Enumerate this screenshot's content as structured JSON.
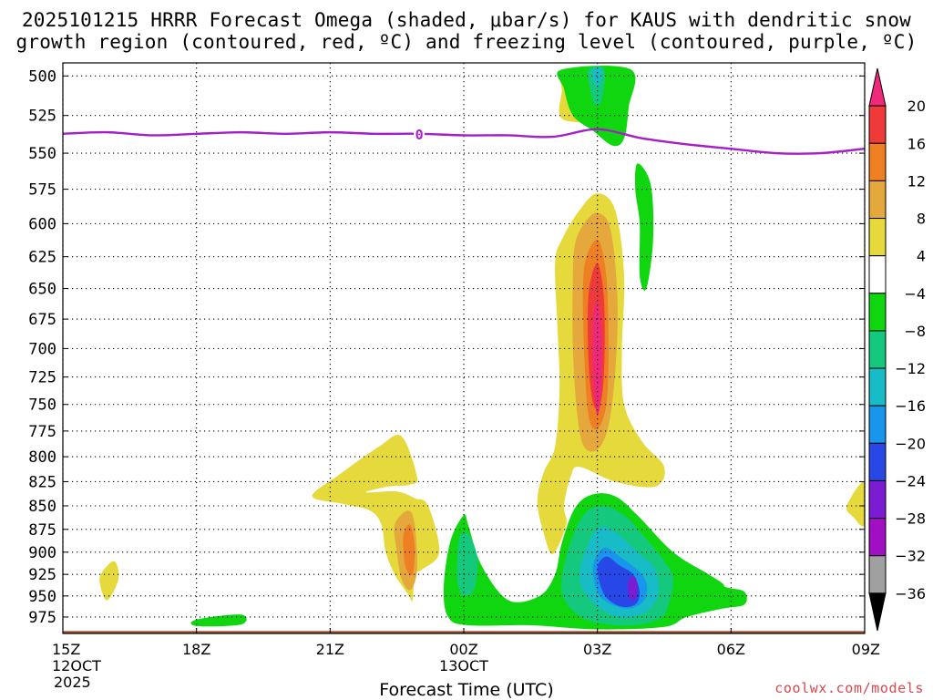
{
  "title_line1": "2025101215 HRRR Forecast Omega (shaded, μbar/s) for KAUS with dendritic snow",
  "title_line2": "growth region (contoured, red, ºC) and freezing level (contoured, purple, ºC)",
  "credit": "coolwx.com/models",
  "chart_data": {
    "type": "heatmap",
    "title": "2025101215 HRRR Forecast Omega (shaded, μbar/s) for KAUS with dendritic snow growth region (contoured, red, ºC) and freezing level (contoured, purple, ºC)",
    "xlabel": "Forecast Time (UTC)",
    "ylabel": "",
    "y_axis": {
      "values": [
        500,
        525,
        550,
        575,
        600,
        625,
        650,
        675,
        700,
        725,
        750,
        775,
        800,
        825,
        850,
        875,
        900,
        925,
        950,
        975
      ],
      "inverted_log_pressure": true,
      "range": [
        492,
        995
      ]
    },
    "x_axis": {
      "range_hours": [
        0,
        18
      ],
      "ticks": [
        {
          "hour": 0,
          "label": "15Z",
          "sub1": "12OCT",
          "sub2": "2025"
        },
        {
          "hour": 3,
          "label": "18Z"
        },
        {
          "hour": 6,
          "label": "21Z"
        },
        {
          "hour": 9,
          "label": "00Z",
          "sub1": "13OCT"
        },
        {
          "hour": 12,
          "label": "03Z"
        },
        {
          "hour": 15,
          "label": "06Z"
        },
        {
          "hour": 18,
          "label": "09Z"
        }
      ]
    },
    "grid": true,
    "colorbar": {
      "labels": [
        "20",
        "16",
        "12",
        "8",
        "4",
        "−4",
        "−8",
        "−12",
        "−16",
        "−20",
        "−24",
        "−28",
        "−32",
        "−36"
      ],
      "bins": [
        {
          "lo": 20,
          "hi": null,
          "color": "#f0287c"
        },
        {
          "lo": 16,
          "hi": 20,
          "color": "#ef3a3a"
        },
        {
          "lo": 12,
          "hi": 16,
          "color": "#ee7f23"
        },
        {
          "lo": 8,
          "hi": 12,
          "color": "#e4a83c"
        },
        {
          "lo": 4,
          "hi": 8,
          "color": "#e5d93b"
        },
        {
          "lo": -4,
          "hi": 4,
          "color": "#ffffff"
        },
        {
          "lo": -8,
          "hi": -4,
          "color": "#0fd60f"
        },
        {
          "lo": -12,
          "hi": -8,
          "color": "#14c97e"
        },
        {
          "lo": -16,
          "hi": -12,
          "color": "#18bcc6"
        },
        {
          "lo": -20,
          "hi": -16,
          "color": "#1796ec"
        },
        {
          "lo": -24,
          "hi": -20,
          "color": "#2748e7"
        },
        {
          "lo": -28,
          "hi": -24,
          "color": "#7b1cd2"
        },
        {
          "lo": -32,
          "hi": -28,
          "color": "#a10ec4"
        },
        {
          "lo": -36,
          "hi": -32,
          "color": "#a0a0a0"
        },
        {
          "lo": null,
          "hi": -36,
          "color": "#000000"
        }
      ]
    },
    "omega_features": [
      {
        "omega": 4,
        "points": [
          [
            11.3,
            496
          ],
          [
            12.7,
            496
          ],
          [
            12.7,
            520
          ],
          [
            12.5,
            543
          ],
          [
            12.0,
            531
          ],
          [
            11.2,
            527
          ],
          [
            11.2,
            510
          ]
        ]
      },
      {
        "omega": -8,
        "points": [
          [
            11.2,
            496
          ],
          [
            12.75,
            496
          ],
          [
            12.7,
            520
          ],
          [
            12.6,
            540
          ],
          [
            12.35,
            545
          ],
          [
            11.9,
            535
          ],
          [
            11.45,
            525
          ],
          [
            11.25,
            508
          ]
        ]
      },
      {
        "omega": -12,
        "points": [
          [
            11.8,
            496
          ],
          [
            12.15,
            496
          ],
          [
            12.1,
            515
          ],
          [
            11.95,
            518
          ],
          [
            11.85,
            510
          ]
        ]
      },
      {
        "omega": -16,
        "points": [
          [
            11.9,
            496
          ],
          [
            12.1,
            496
          ],
          [
            12.05,
            505
          ],
          [
            11.95,
            506
          ]
        ]
      },
      {
        "omega": -8,
        "points": [
          [
            12.9,
            557
          ],
          [
            13.2,
            572
          ],
          [
            13.25,
            612
          ],
          [
            13.1,
            650
          ],
          [
            12.95,
            640
          ],
          [
            12.95,
            600
          ],
          [
            12.85,
            575
          ]
        ]
      },
      {
        "omega": 4,
        "points": [
          [
            11.2,
            612
          ],
          [
            11.6,
            590
          ],
          [
            12.0,
            578
          ],
          [
            12.4,
            590
          ],
          [
            12.6,
            640
          ],
          [
            12.55,
            700
          ],
          [
            12.6,
            750
          ],
          [
            13.0,
            785
          ],
          [
            13.5,
            810
          ],
          [
            13.3,
            830
          ],
          [
            12.4,
            825
          ],
          [
            11.6,
            810
          ],
          [
            11.4,
            820
          ],
          [
            11.25,
            850
          ],
          [
            11.3,
            870
          ],
          [
            11.0,
            902
          ],
          [
            10.8,
            880
          ],
          [
            10.65,
            845
          ],
          [
            10.8,
            815
          ],
          [
            11.05,
            790
          ],
          [
            11.15,
            735
          ],
          [
            11.1,
            680
          ],
          [
            11.05,
            630
          ]
        ]
      },
      {
        "omega": 8,
        "points": [
          [
            11.5,
            615
          ],
          [
            11.7,
            600
          ],
          [
            12.0,
            592
          ],
          [
            12.3,
            605
          ],
          [
            12.45,
            660
          ],
          [
            12.4,
            720
          ],
          [
            12.25,
            770
          ],
          [
            12.0,
            793
          ],
          [
            11.7,
            790
          ],
          [
            11.55,
            760
          ],
          [
            11.45,
            700
          ],
          [
            11.45,
            640
          ]
        ]
      },
      {
        "omega": 12,
        "points": [
          [
            11.7,
            635
          ],
          [
            12.0,
            612
          ],
          [
            12.2,
            640
          ],
          [
            12.25,
            700
          ],
          [
            12.2,
            750
          ],
          [
            12.0,
            773
          ],
          [
            11.8,
            760
          ],
          [
            11.7,
            700
          ]
        ]
      },
      {
        "omega": 16,
        "points": [
          [
            11.8,
            655
          ],
          [
            12.0,
            630
          ],
          [
            12.15,
            660
          ],
          [
            12.15,
            720
          ],
          [
            12.05,
            752
          ],
          [
            11.9,
            748
          ],
          [
            11.8,
            710
          ]
        ]
      },
      {
        "omega": 20,
        "points": [
          [
            11.9,
            680
          ],
          [
            12.0,
            660
          ],
          [
            12.1,
            690
          ],
          [
            12.08,
            740
          ],
          [
            12.0,
            760
          ],
          [
            11.92,
            735
          ]
        ]
      },
      {
        "omega": 4,
        "points": [
          [
            5.6,
            840
          ],
          [
            6.2,
            818
          ],
          [
            7.1,
            790
          ],
          [
            7.6,
            780
          ],
          [
            7.95,
            820
          ],
          [
            7.8,
            828
          ],
          [
            7.3,
            830
          ],
          [
            6.8,
            836
          ],
          [
            7.5,
            835
          ],
          [
            7.9,
            842
          ],
          [
            8.2,
            850
          ],
          [
            8.45,
            900
          ],
          [
            8.05,
            920
          ],
          [
            7.9,
            925
          ],
          [
            7.85,
            955
          ],
          [
            7.75,
            948
          ],
          [
            7.45,
            925
          ],
          [
            7.25,
            900
          ],
          [
            7.15,
            870
          ],
          [
            6.9,
            855
          ],
          [
            6.3,
            848
          ]
        ]
      },
      {
        "omega": 8,
        "points": [
          [
            7.45,
            870
          ],
          [
            7.75,
            855
          ],
          [
            7.9,
            870
          ],
          [
            7.95,
            920
          ],
          [
            7.8,
            943
          ],
          [
            7.6,
            930
          ],
          [
            7.5,
            900
          ]
        ]
      },
      {
        "omega": 12,
        "points": [
          [
            7.65,
            880
          ],
          [
            7.8,
            870
          ],
          [
            7.9,
            895
          ],
          [
            7.85,
            925
          ],
          [
            7.7,
            918
          ],
          [
            7.65,
            900
          ]
        ]
      },
      {
        "omega": 4,
        "points": [
          [
            17.6,
            850
          ],
          [
            18.0,
            825
          ],
          [
            18.0,
            870
          ],
          [
            17.75,
            862
          ]
        ]
      },
      {
        "omega": 4,
        "points": [
          [
            0.85,
            925
          ],
          [
            1.15,
            910
          ],
          [
            1.25,
            930
          ],
          [
            1.0,
            955
          ],
          [
            0.85,
            940
          ]
        ]
      },
      {
        "omega": -8,
        "points": [
          [
            9.0,
            860
          ],
          [
            8.7,
            888
          ],
          [
            8.55,
            940
          ],
          [
            8.65,
            975
          ],
          [
            9.1,
            985
          ],
          [
            10.5,
            985
          ],
          [
            12.0,
            990
          ],
          [
            13.5,
            987
          ],
          [
            14.0,
            975
          ],
          [
            14.8,
            965
          ],
          [
            15.3,
            960
          ],
          [
            15.3,
            945
          ],
          [
            14.9,
            940
          ],
          [
            14.8,
            935
          ],
          [
            14.5,
            925
          ],
          [
            13.7,
            900
          ],
          [
            12.9,
            860
          ],
          [
            12.4,
            840
          ],
          [
            11.9,
            838
          ],
          [
            11.5,
            852
          ],
          [
            11.2,
            890
          ],
          [
            11.05,
            925
          ],
          [
            10.7,
            950
          ],
          [
            10.0,
            955
          ],
          [
            9.4,
            915
          ],
          [
            9.1,
            870
          ]
        ]
      },
      {
        "omega": -12,
        "points": [
          [
            8.9,
            885
          ],
          [
            9.1,
            880
          ],
          [
            9.3,
            905
          ],
          [
            9.25,
            940
          ],
          [
            9.0,
            950
          ],
          [
            8.85,
            930
          ]
        ]
      },
      {
        "omega": -12,
        "points": [
          [
            11.2,
            945
          ],
          [
            11.3,
            905
          ],
          [
            11.65,
            862
          ],
          [
            12.1,
            850
          ],
          [
            12.6,
            860
          ],
          [
            13.0,
            880
          ],
          [
            13.5,
            910
          ],
          [
            13.7,
            930
          ],
          [
            13.6,
            960
          ],
          [
            13.4,
            977
          ],
          [
            12.8,
            985
          ],
          [
            12.0,
            982
          ],
          [
            11.5,
            970
          ]
        ]
      },
      {
        "omega": -16,
        "points": [
          [
            11.6,
            930
          ],
          [
            11.8,
            890
          ],
          [
            12.1,
            872
          ],
          [
            12.5,
            882
          ],
          [
            12.9,
            900
          ],
          [
            13.3,
            920
          ],
          [
            13.35,
            950
          ],
          [
            13.05,
            970
          ],
          [
            12.5,
            975
          ],
          [
            11.95,
            960
          ]
        ]
      },
      {
        "omega": -20,
        "points": [
          [
            11.9,
            915
          ],
          [
            12.15,
            895
          ],
          [
            12.5,
            905
          ],
          [
            12.9,
            920
          ],
          [
            13.1,
            935
          ],
          [
            13.05,
            955
          ],
          [
            12.7,
            965
          ],
          [
            12.25,
            958
          ],
          [
            12.0,
            945
          ]
        ]
      },
      {
        "omega": -24,
        "points": [
          [
            12.0,
            918
          ],
          [
            12.2,
            905
          ],
          [
            12.5,
            915
          ],
          [
            12.8,
            925
          ],
          [
            12.95,
            945
          ],
          [
            12.85,
            960
          ],
          [
            12.5,
            962
          ],
          [
            12.15,
            948
          ]
        ]
      },
      {
        "omega": -28,
        "points": [
          [
            12.7,
            932
          ],
          [
            12.85,
            928
          ],
          [
            12.9,
            945
          ],
          [
            12.8,
            956
          ],
          [
            12.7,
            948
          ]
        ]
      },
      {
        "omega": -8,
        "points": [
          [
            3.0,
            978
          ],
          [
            4.0,
            972
          ],
          [
            4.0,
            984
          ],
          [
            3.0,
            986
          ]
        ]
      }
    ],
    "freezing_level_0C": {
      "label": "0",
      "label_at_hour": 8.0,
      "points": [
        [
          0,
          537
        ],
        [
          1,
          536
        ],
        [
          2,
          538
        ],
        [
          3,
          537
        ],
        [
          4,
          536
        ],
        [
          5,
          537
        ],
        [
          6,
          536
        ],
        [
          7,
          537
        ],
        [
          8,
          537
        ],
        [
          9,
          538
        ],
        [
          10,
          538
        ],
        [
          11,
          539
        ],
        [
          12,
          534
        ],
        [
          13,
          540
        ],
        [
          14,
          544
        ],
        [
          15,
          547
        ],
        [
          16,
          550
        ],
        [
          17,
          550
        ],
        [
          18,
          547
        ]
      ]
    },
    "ground_level_hPa": 992
  }
}
